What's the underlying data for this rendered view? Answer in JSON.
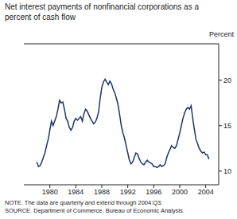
{
  "chart_data": {
    "type": "line",
    "title": "Net interest payments of nonfinancial corporations as a percent of cash flow",
    "y_label": "Percent",
    "notes": [
      "NOTE. The data are quarterly and extend through 2004:Q3.",
      "SOURCE. Department of Commerce, Bureau of Economic Analysis."
    ],
    "x": [
      1978,
      1978.25,
      1978.5,
      1978.75,
      1979,
      1979.25,
      1979.5,
      1979.75,
      1980,
      1980.25,
      1980.5,
      1980.75,
      1981,
      1981.25,
      1981.5,
      1981.75,
      1982,
      1982.25,
      1982.5,
      1982.75,
      1983,
      1983.25,
      1983.5,
      1983.75,
      1984,
      1984.25,
      1984.5,
      1984.75,
      1985,
      1985.25,
      1985.5,
      1985.75,
      1986,
      1986.25,
      1986.5,
      1986.75,
      1987,
      1987.25,
      1987.5,
      1987.75,
      1988,
      1988.25,
      1988.5,
      1988.75,
      1989,
      1989.25,
      1989.5,
      1989.75,
      1990,
      1990.25,
      1990.5,
      1990.75,
      1991,
      1991.25,
      1991.5,
      1991.75,
      1992,
      1992.25,
      1992.5,
      1992.75,
      1993,
      1993.25,
      1993.5,
      1993.75,
      1994,
      1994.25,
      1994.5,
      1994.75,
      1995,
      1995.25,
      1995.5,
      1995.75,
      1996,
      1996.25,
      1996.5,
      1996.75,
      1997,
      1997.25,
      1997.5,
      1997.75,
      1998,
      1998.25,
      1998.5,
      1998.75,
      1999,
      1999.25,
      1999.5,
      1999.75,
      2000,
      2000.25,
      2000.5,
      2000.75,
      2001,
      2001.25,
      2001.5,
      2001.75,
      2002,
      2002.25,
      2002.5,
      2002.75,
      2003,
      2003.25,
      2003.5,
      2003.75,
      2004,
      2004.25,
      2004.5
    ],
    "values": [
      11,
      10.5,
      10.6,
      11,
      11.5,
      12,
      12.8,
      13.5,
      14.5,
      15.5,
      15,
      15.5,
      16,
      16.8,
      17.8,
      17.5,
      17.6,
      16.8,
      15.8,
      15.5,
      14.8,
      14.5,
      14.8,
      15.5,
      15.8,
      15.6,
      15.8,
      16,
      15.5,
      16.3,
      16.8,
      16.6,
      16.2,
      15.8,
      15.5,
      15.2,
      15.4,
      15.8,
      16.5,
      18,
      19.2,
      19.8,
      20.1,
      19.8,
      19.5,
      19.9,
      19.6,
      19,
      18.6,
      18,
      17.3,
      16.2,
      15,
      14.2,
      13.6,
      12.8,
      12,
      11.2,
      10.8,
      11,
      11.5,
      12,
      11.9,
      11.4,
      11,
      10.8,
      10.7,
      11,
      11.2,
      11,
      10.9,
      10.8,
      10.5,
      10.5,
      10.4,
      10.5,
      10.7,
      10.5,
      10.6,
      10.8,
      11.5,
      12,
      12.4,
      12.8,
      12.6,
      12.5,
      12.8,
      13.5,
      14.2,
      15,
      15.8,
      16.4,
      16.8,
      17,
      16.8,
      17.2,
      15.8,
      14.6,
      13.5,
      13,
      12.5,
      12.2,
      12,
      12.1,
      11.8,
      11.8,
      11.3
    ],
    "color": "#1a3668",
    "xlim": [
      1976,
      2006
    ],
    "xticks": [
      1980,
      1984,
      1988,
      1992,
      1996,
      2000,
      2004
    ],
    "ylim": [
      8.5,
      24
    ],
    "yticks": [
      10,
      15,
      20
    ],
    "grid": false
  }
}
